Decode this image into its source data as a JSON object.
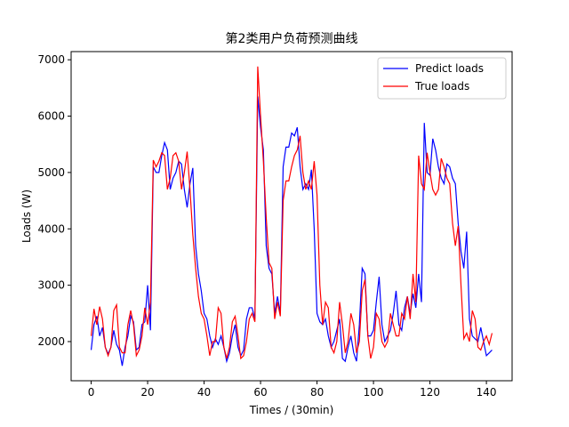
{
  "chart_data": {
    "type": "line",
    "title": "第2类用户负荷预测曲线",
    "xlabel": "Times / (30min)",
    "ylabel": "Loads (W)",
    "x": [
      0,
      1,
      2,
      3,
      4,
      5,
      6,
      7,
      8,
      9,
      10,
      11,
      12,
      13,
      14,
      15,
      16,
      17,
      18,
      19,
      20,
      21,
      22,
      23,
      24,
      25,
      26,
      27,
      28,
      29,
      30,
      31,
      32,
      33,
      34,
      35,
      36,
      37,
      38,
      39,
      40,
      41,
      42,
      43,
      44,
      45,
      46,
      47,
      48,
      49,
      50,
      51,
      52,
      53,
      54,
      55,
      56,
      57,
      58,
      59,
      60,
      61,
      62,
      63,
      64,
      65,
      66,
      67,
      68,
      69,
      70,
      71,
      72,
      73,
      74,
      75,
      76,
      77,
      78,
      79,
      80,
      81,
      82,
      83,
      84,
      85,
      86,
      87,
      88,
      89,
      90,
      91,
      92,
      93,
      94,
      95,
      96,
      97,
      98,
      99,
      100,
      101,
      102,
      103,
      104,
      105,
      106,
      107,
      108,
      109,
      110,
      111,
      112,
      113,
      114,
      115,
      116,
      117,
      118,
      119,
      120,
      121,
      122,
      123,
      124,
      125,
      126,
      127,
      128,
      129,
      130,
      131,
      132,
      133,
      134,
      135,
      136,
      137,
      138,
      139,
      140,
      141,
      142
    ],
    "series": [
      {
        "name": "Predict loads",
        "color": "#0000ff",
        "values": [
          1850,
          2300,
          2450,
          2100,
          2250,
          1900,
          1780,
          1900,
          2200,
          1950,
          1850,
          1570,
          1900,
          2100,
          2450,
          2350,
          1850,
          1900,
          2300,
          2350,
          3000,
          2200,
          5100,
          5000,
          5000,
          5300,
          5530,
          5400,
          4700,
          4900,
          5000,
          5200,
          5150,
          4700,
          4380,
          4800,
          5080,
          3700,
          3200,
          2900,
          2500,
          2400,
          2100,
          1900,
          2050,
          1950,
          2100,
          1900,
          1650,
          1800,
          2100,
          2300,
          1900,
          1750,
          1850,
          2400,
          2600,
          2600,
          2400,
          6350,
          5800,
          5400,
          3700,
          3300,
          3200,
          2500,
          2800,
          2500,
          5100,
          5450,
          5450,
          5700,
          5650,
          5800,
          5100,
          4700,
          4800,
          4700,
          5050,
          4000,
          2500,
          2350,
          2300,
          2400,
          2100,
          1900,
          2000,
          2200,
          2400,
          1700,
          1650,
          1900,
          2100,
          1800,
          1650,
          2300,
          3300,
          3200,
          2100,
          2100,
          2200,
          2700,
          3150,
          2300,
          2000,
          2100,
          2200,
          2500,
          2900,
          2300,
          2200,
          2600,
          2800,
          2500,
          2850,
          2600,
          3200,
          2700,
          5880,
          5000,
          4950,
          5600,
          5400,
          5100,
          4900,
          4800,
          5150,
          5100,
          4900,
          4800,
          4100,
          3600,
          3300,
          3950,
          2400,
          2100,
          2050,
          2000,
          2250,
          2000,
          1750,
          1800,
          1850
        ]
      },
      {
        "name": "True loads",
        "color": "#ff0000",
        "values": [
          2100,
          2580,
          2300,
          2620,
          2400,
          1900,
          1750,
          1900,
          2550,
          2650,
          1900,
          1800,
          1800,
          2300,
          2550,
          2300,
          1750,
          1850,
          2100,
          2600,
          2300,
          2700,
          5220,
          5100,
          5200,
          5350,
          5300,
          4700,
          4900,
          5300,
          5350,
          5200,
          4700,
          5000,
          5370,
          4700,
          3900,
          3300,
          2800,
          2500,
          2400,
          2100,
          1750,
          2000,
          2000,
          2600,
          2500,
          1900,
          1700,
          1900,
          2350,
          2450,
          2100,
          1700,
          1750,
          2000,
          2400,
          2500,
          2350,
          6880,
          6000,
          5200,
          4200,
          3400,
          3300,
          2400,
          2700,
          2450,
          4500,
          4850,
          4850,
          5100,
          5300,
          5400,
          5650,
          5000,
          4700,
          4850,
          4700,
          5200,
          4600,
          3000,
          2300,
          2700,
          2600,
          1900,
          1800,
          2000,
          2700,
          2300,
          1800,
          2000,
          2500,
          2300,
          1800,
          2000,
          2900,
          3100,
          2100,
          1700,
          1900,
          2500,
          2400,
          2000,
          1900,
          2000,
          2500,
          2300,
          2100,
          2100,
          2500,
          2400,
          2800,
          2400,
          3200,
          2700,
          5300,
          4800,
          4700,
          5350,
          5000,
          4700,
          4600,
          4700,
          5250,
          5100,
          4900,
          4800,
          4100,
          3700,
          4050,
          3000,
          2050,
          2150,
          2000,
          2550,
          2400,
          1900,
          1850,
          2000,
          2100,
          1950,
          2150
        ]
      }
    ],
    "xlim": [
      -7.1,
      149.1
    ],
    "xticks": [
      0,
      20,
      40,
      60,
      80,
      100,
      120,
      140
    ],
    "ylim": [
      1305,
      7145
    ],
    "yticks": [
      2000,
      3000,
      4000,
      5000,
      6000,
      7000
    ],
    "legend": "upper right"
  }
}
